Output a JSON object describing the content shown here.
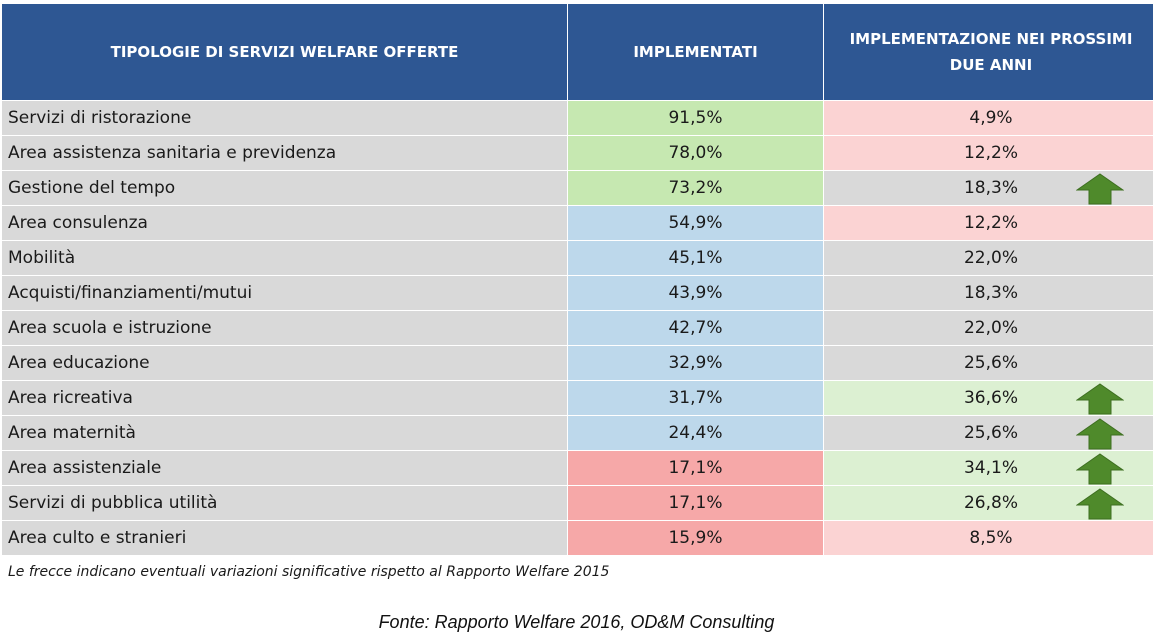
{
  "table": {
    "headers": [
      "TIPOLOGIE DI SERVIZI WELFARE OFFERTE",
      "IMPLEMENTATI",
      "IMPLEMENTAZIONE NEI PROSSIMI DUE ANNI"
    ],
    "rows": [
      {
        "label": "Servizi di ristorazione",
        "implementati": "91,5%",
        "prossimi": "4,9%",
        "imp_color": "green",
        "next_color": "pink",
        "arrow": false
      },
      {
        "label": "Area assistenza sanitaria e previdenza",
        "implementati": "78,0%",
        "prossimi": "12,2%",
        "imp_color": "green",
        "next_color": "pink",
        "arrow": false
      },
      {
        "label": "Gestione del tempo",
        "implementati": "73,2%",
        "prossimi": "18,3%",
        "imp_color": "green",
        "next_color": "gray",
        "arrow": true
      },
      {
        "label": "Area consulenza",
        "implementati": "54,9%",
        "prossimi": "12,2%",
        "imp_color": "blue",
        "next_color": "pink",
        "arrow": false
      },
      {
        "label": "Mobilità",
        "implementati": "45,1%",
        "prossimi": "22,0%",
        "imp_color": "blue",
        "next_color": "gray",
        "arrow": false
      },
      {
        "label": "Acquisti/finanziamenti/mutui",
        "implementati": "43,9%",
        "prossimi": "18,3%",
        "imp_color": "blue",
        "next_color": "gray",
        "arrow": false
      },
      {
        "label": "Area scuola e istruzione",
        "implementati": "42,7%",
        "prossimi": "22,0%",
        "imp_color": "blue",
        "next_color": "gray",
        "arrow": false
      },
      {
        "label": "Area educazione",
        "implementati": "32,9%",
        "prossimi": "25,6%",
        "imp_color": "blue",
        "next_color": "gray",
        "arrow": false
      },
      {
        "label": "Area ricreativa",
        "implementati": "31,7%",
        "prossimi": "36,6%",
        "imp_color": "blue",
        "next_color": "lgreen",
        "arrow": true
      },
      {
        "label": "Area maternità",
        "implementati": "24,4%",
        "prossimi": "25,6%",
        "imp_color": "blue",
        "next_color": "gray",
        "arrow": true
      },
      {
        "label": "Area assistenziale",
        "implementati": "17,1%",
        "prossimi": "34,1%",
        "imp_color": "red",
        "next_color": "lgreen",
        "arrow": true
      },
      {
        "label": "Servizi di pubblica utilità",
        "implementati": "17,1%",
        "prossimi": "26,8%",
        "imp_color": "red",
        "next_color": "lgreen",
        "arrow": true
      },
      {
        "label": "Area culto e stranieri",
        "implementati": "15,9%",
        "prossimi": "8,5%",
        "imp_color": "red",
        "next_color": "pink",
        "arrow": false
      }
    ]
  },
  "colors": {
    "header_bg": "#2e5793",
    "green": "#c6e8b1",
    "blue": "#bdd8eb",
    "red": "#f6a8a8",
    "pink": "#fbd3d3",
    "gray": "#d9d9d9",
    "lgreen": "#dcf0d2",
    "arrow": "#4f8a2b"
  },
  "icons": {
    "arrow": "up-arrow-icon"
  },
  "note": "Le frecce indicano eventuali variazioni significative rispetto al Rapporto Welfare 2015",
  "source": "Fonte: Rapporto Welfare 2016, OD&M Consulting"
}
